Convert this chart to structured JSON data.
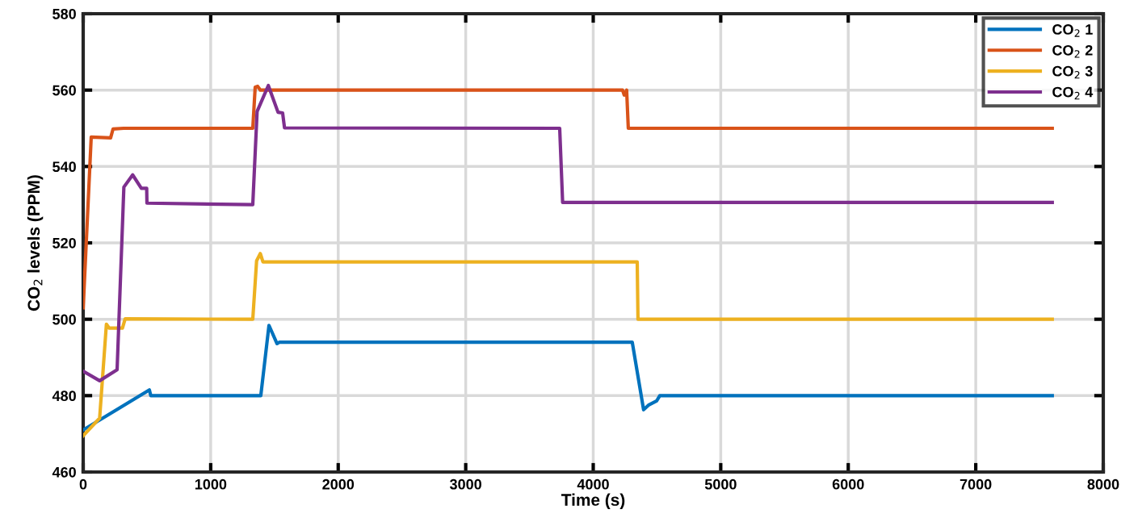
{
  "chart_data": {
    "type": "line",
    "xlabel": "Time (s)",
    "ylabel": "CO$_{2}$ levels (PPM)",
    "xlim": [
      0,
      8000
    ],
    "xticks": [
      0,
      1000,
      2000,
      3000,
      4000,
      5000,
      6000,
      7000,
      8000
    ],
    "ylim": [
      460,
      580
    ],
    "yticks": [
      460,
      480,
      500,
      520,
      540,
      560,
      580
    ],
    "grid": true,
    "legend": "top right",
    "line_style": "solid",
    "marker": "none",
    "series": [
      {
        "name": "CO$_{2}$ 1",
        "color": "#0072bd",
        "x": [
          0,
          519,
          530,
          1393,
          1457,
          1520,
          1540,
          4306,
          4395,
          4433,
          4497,
          4522,
          7600
        ],
        "values": [
          471,
          481.5,
          480,
          480,
          498.4,
          493.6,
          494,
          494,
          476.3,
          477.5,
          478.6,
          480,
          480
        ]
      },
      {
        "name": "CO$_{2}$ 2",
        "color": "#d95319",
        "x": [
          0,
          63,
          215,
          234,
          317,
          1330,
          1349,
          1368,
          1390,
          4230,
          4243,
          4262,
          4275,
          7600
        ],
        "values": [
          503,
          547.7,
          547.5,
          549.8,
          550,
          550,
          560.8,
          561,
          560,
          560,
          558.7,
          560,
          550,
          550
        ]
      },
      {
        "name": "CO$_{2}$ 3",
        "color": "#edb120",
        "x": [
          0,
          129,
          182,
          203,
          308,
          329,
          1330,
          1360,
          1389,
          1410,
          4345,
          4351,
          7600
        ],
        "values": [
          469.5,
          474.1,
          498.7,
          497.7,
          497.7,
          500.1,
          500,
          515.3,
          517.2,
          515,
          515,
          500,
          500
        ]
      },
      {
        "name": "CO$_{2}$ 4",
        "color": "#7e2f8e",
        "x": [
          0,
          129,
          266,
          319,
          388,
          456,
          498,
          500,
          1330,
          1364,
          1452,
          1528,
          1564,
          1579,
          3737,
          3760,
          7600
        ],
        "values": [
          486.4,
          483.9,
          486.8,
          534.6,
          537.8,
          534.3,
          534.3,
          530.4,
          530,
          554.4,
          561.2,
          554.2,
          554,
          550.1,
          550,
          530.6,
          530.6
        ]
      }
    ]
  }
}
